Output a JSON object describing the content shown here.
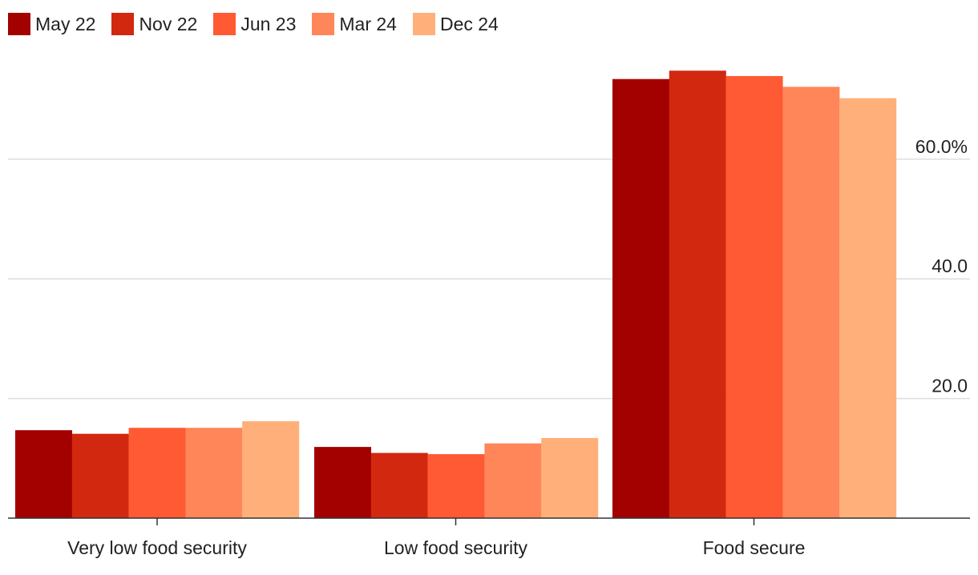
{
  "chart_data": {
    "type": "bar",
    "title": "",
    "xlabel": "",
    "ylabel": "",
    "categories": [
      "Very low food security",
      "Low food security",
      "Food secure"
    ],
    "series": [
      {
        "name": "May 22",
        "color": "#a30000",
        "values": [
          14.7,
          11.9,
          73.4
        ]
      },
      {
        "name": "Nov 22",
        "color": "#d1280f",
        "values": [
          14.1,
          10.9,
          74.8
        ]
      },
      {
        "name": "Jun 23",
        "color": "#ff5a33",
        "values": [
          15.1,
          10.7,
          73.9
        ]
      },
      {
        "name": "Mar 24",
        "color": "#ff8659",
        "values": [
          15.1,
          12.5,
          72.1
        ]
      },
      {
        "name": "Dec 24",
        "color": "#ffb07a",
        "values": [
          16.2,
          13.4,
          70.2
        ]
      }
    ],
    "ylim": [
      0,
      75
    ],
    "yticks": [
      20,
      40,
      60
    ],
    "ytick_labels": [
      "20.0",
      "40.0",
      "60.0%"
    ],
    "grid": true,
    "legend_position": "top-left",
    "yaxis_position": "right"
  }
}
